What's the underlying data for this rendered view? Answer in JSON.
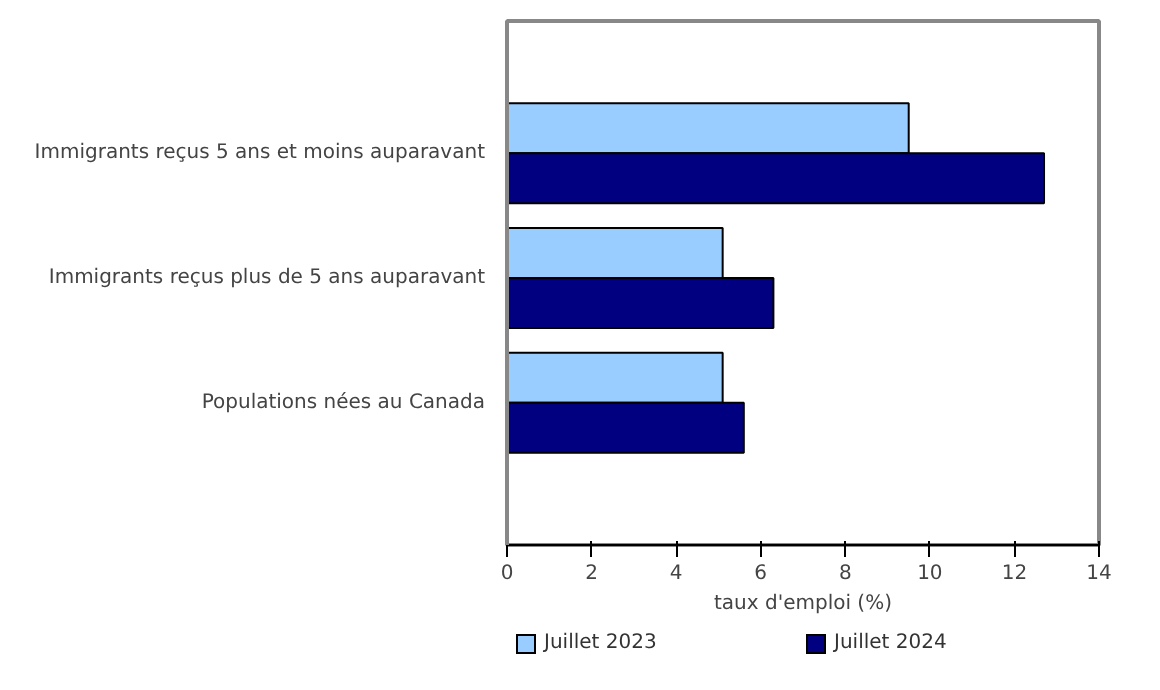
{
  "chart_data": {
    "type": "bar",
    "orientation": "horizontal",
    "categories": [
      "Immigrants reçus 5 ans et moins auparavant",
      "Immigrants reçus plus de 5 ans auparavant",
      "Populations nées au Canada"
    ],
    "series": [
      {
        "name": "Juillet 2023",
        "color": "#99ccff",
        "values": [
          9.5,
          5.1,
          5.1
        ]
      },
      {
        "name": "Juillet 2024",
        "color": "#000080",
        "values": [
          12.7,
          6.3,
          5.6
        ]
      }
    ],
    "xlabel": "taux d'emploi (%)",
    "xlim": [
      0,
      14
    ],
    "xticks": [
      0,
      2,
      4,
      6,
      8,
      10,
      12,
      14
    ],
    "grid": false,
    "legend": "bottom"
  }
}
